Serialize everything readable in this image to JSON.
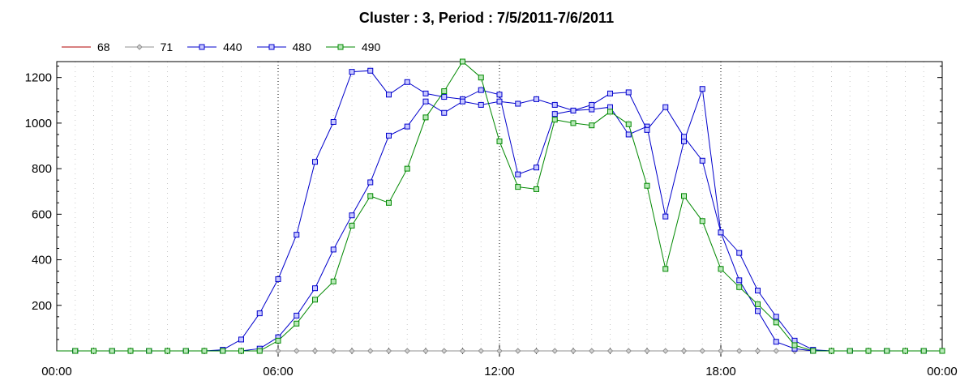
{
  "chart_data": {
    "type": "line",
    "title": "Cluster : 3, Period : 7/5/2011-7/6/2011",
    "xlabel": "",
    "ylabel": "",
    "x_range_hours": [
      0,
      24
    ],
    "ylim": [
      0,
      1270
    ],
    "y_ticks": [
      200,
      400,
      600,
      800,
      1000,
      1200
    ],
    "x_ticks": [
      {
        "hour": 0,
        "label": "00:00"
      },
      {
        "hour": 6,
        "label": "06:00"
      },
      {
        "hour": 12,
        "label": "12:00"
      },
      {
        "hour": 18,
        "label": "18:00"
      },
      {
        "hour": 24,
        "label": "00:00"
      }
    ],
    "grid": "vertical dotted",
    "legend_position": "top-left",
    "x_hours": [
      0.5,
      1.0,
      1.5,
      2.0,
      2.5,
      3.0,
      3.5,
      4.0,
      4.5,
      5.0,
      5.5,
      6.0,
      6.5,
      7.0,
      7.5,
      8.0,
      8.5,
      9.0,
      9.5,
      10.0,
      10.5,
      11.0,
      11.5,
      12.0,
      12.5,
      13.0,
      13.5,
      14.0,
      14.5,
      15.0,
      15.5,
      16.0,
      16.5,
      17.0,
      17.5,
      18.0,
      18.5,
      19.0,
      19.5,
      20.0,
      20.5,
      21.0,
      21.5,
      22.0,
      22.5,
      23.0,
      23.5,
      24.0
    ],
    "series": [
      {
        "name": "68",
        "color": "#b00000",
        "marker": "none",
        "values": [
          0,
          0,
          0,
          0,
          0,
          0,
          0,
          0,
          0,
          0,
          0,
          0,
          0,
          0,
          0,
          0,
          0,
          0,
          0,
          0,
          0,
          0,
          0,
          0,
          0,
          0,
          0,
          0,
          0,
          0,
          0,
          0,
          0,
          0,
          0,
          0,
          0,
          0,
          0,
          0,
          0,
          0,
          0,
          0,
          0,
          0,
          0,
          0
        ]
      },
      {
        "name": "71",
        "color": "#909090",
        "marker": "diamond",
        "values": [
          0,
          0,
          0,
          0,
          0,
          0,
          0,
          0,
          0,
          0,
          0,
          0,
          0,
          0,
          0,
          0,
          0,
          0,
          0,
          0,
          0,
          0,
          0,
          0,
          0,
          0,
          0,
          0,
          0,
          0,
          0,
          0,
          0,
          0,
          0,
          0,
          0,
          0,
          0,
          0,
          0,
          0,
          0,
          0,
          0,
          0,
          0,
          0
        ]
      },
      {
        "name": "440",
        "color": "#0000cc",
        "marker": "square",
        "values": [
          0,
          0,
          0,
          0,
          0,
          0,
          0,
          0,
          5,
          50,
          165,
          315,
          510,
          830,
          1005,
          1225,
          1230,
          1125,
          1180,
          1130,
          1115,
          1105,
          1145,
          1125,
          775,
          805,
          1040,
          1055,
          1060,
          1070,
          950,
          985,
          590,
          920,
          1150,
          520,
          310,
          175,
          40,
          10,
          0,
          0,
          0,
          0,
          0,
          0,
          0,
          0
        ]
      },
      {
        "name": "480",
        "color": "#0000cc",
        "marker": "square",
        "values": [
          0,
          0,
          0,
          0,
          0,
          0,
          0,
          0,
          0,
          0,
          10,
          60,
          155,
          275,
          445,
          595,
          740,
          945,
          985,
          1095,
          1045,
          1095,
          1080,
          1095,
          1085,
          1105,
          1080,
          1055,
          1080,
          1130,
          1135,
          970,
          1070,
          940,
          835,
          520,
          430,
          265,
          150,
          45,
          5,
          0,
          0,
          0,
          0,
          0,
          0,
          0
        ]
      },
      {
        "name": "490",
        "color": "#008800",
        "marker": "square",
        "values": [
          0,
          0,
          0,
          0,
          0,
          0,
          0,
          0,
          0,
          0,
          0,
          45,
          120,
          225,
          305,
          550,
          680,
          650,
          800,
          1025,
          1140,
          1270,
          1200,
          920,
          720,
          710,
          1015,
          1000,
          990,
          1050,
          995,
          725,
          360,
          680,
          570,
          360,
          280,
          205,
          125,
          25,
          0,
          0,
          0,
          0,
          0,
          0,
          0,
          0
        ]
      }
    ]
  }
}
